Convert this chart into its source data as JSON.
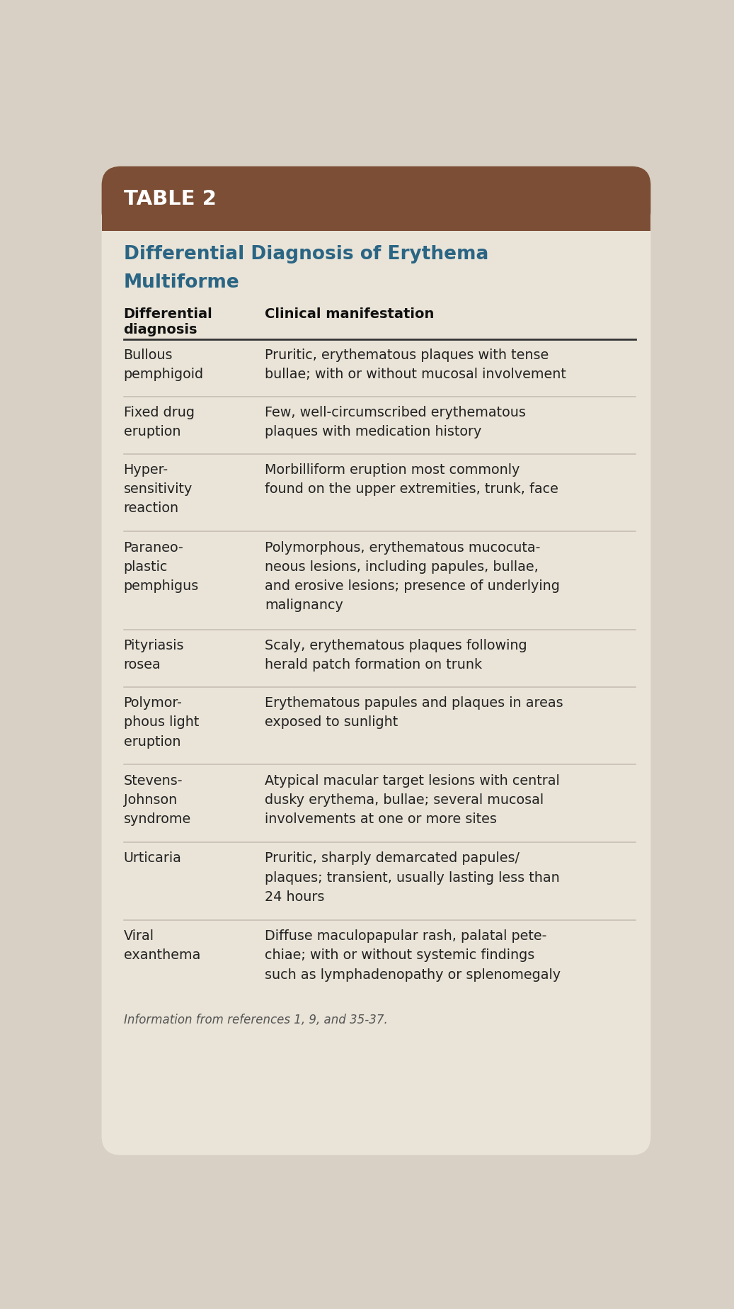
{
  "table_label": "TABLE 2",
  "title_line1": "Differential Diagnosis of Erythema",
  "title_line2": "Multiforme",
  "col1_header": "Differential\ndiagnosis",
  "col2_header": "Clinical manifestation",
  "rows": [
    {
      "diagnosis": "Bullous\npemphigoid",
      "manifestation": "Pruritic, erythematous plaques with tense\nbullae; with or without mucosal involvement"
    },
    {
      "diagnosis": "Fixed drug\neruption",
      "manifestation": "Few, well-circumscribed erythematous\nplaques with medication history"
    },
    {
      "diagnosis": "Hyper-\nsensitivity\nreaction",
      "manifestation": "Morbilliform eruption most commonly\nfound on the upper extremities, trunk, face"
    },
    {
      "diagnosis": "Paraneo-\nplastic\npemphigus",
      "manifestation": "Polymorphous, erythematous mucocuta-\nneous lesions, including papules, bullae,\nand erosive lesions; presence of underlying\nmalignancy"
    },
    {
      "diagnosis": "Pityriasis\nrosea",
      "manifestation": "Scaly, erythematous plaques following\nherald patch formation on trunk"
    },
    {
      "diagnosis": "Polymor-\nphous light\neruption",
      "manifestation": "Erythematous papules and plaques in areas\nexposed to sunlight"
    },
    {
      "diagnosis": "Stevens-\nJohnson\nsyndrome",
      "manifestation": "Atypical macular target lesions with central\ndusky erythema, bullae; several mucosal\ninvolvements at one or more sites"
    },
    {
      "diagnosis": "Urticaria",
      "manifestation": "Pruritic, sharply demarcated papules/\nplaques; transient, usually lasting less than\n24 hours"
    },
    {
      "diagnosis": "Viral\nexanthema",
      "manifestation": "Diffuse maculopapular rash, palatal pete-\nchiae; with or without systemic findings\nsuch as lymphadenopathy or splenomegaly"
    }
  ],
  "footnote": "Information from references 1, 9, and 35-37.",
  "header_bg_color": "#7B4E35",
  "body_bg_color": "#EAE4D8",
  "outer_bg_color": "#D8D0C4",
  "header_text_color": "#FFFFFF",
  "title_color": "#2A6584",
  "col_header_color": "#111111",
  "body_text_color": "#222222",
  "divider_color_heavy": "#333333",
  "divider_color_light": "#C5BBB0",
  "footnote_color": "#555555",
  "fig_width": 10.37,
  "fig_height": 18.49,
  "dpi": 100
}
